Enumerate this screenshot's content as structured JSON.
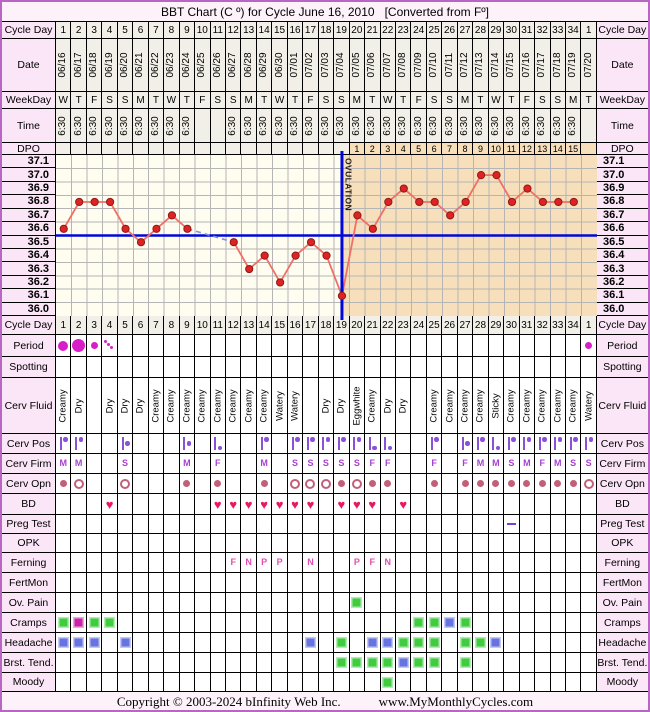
{
  "title": {
    "main": "BBT Chart (C º) for Cycle June 16, 2010",
    "note": "[Converted from Fº]"
  },
  "footer": {
    "copyright": "Copyright © 2003-2024 bInfinity Web Inc.",
    "website": "www.MyMonthlyCycles.com"
  },
  "colors": {
    "accent_pink_label": "#fbe6f7",
    "header_cell": "#f1efe7",
    "pre_ovulation_bg": "#fffcf0",
    "post_ovulation_bg": "#f6dfba",
    "temp_line": "#ef7066",
    "temp_point": "#e02222",
    "coverline_blue": "#0008d8",
    "period_magenta": "#d81ec8",
    "heart_pink": "#e8195e",
    "squares": {
      "green": "#3fcc3f",
      "blue": "#6673e0",
      "magenta": "#cc22aa"
    }
  },
  "grid": {
    "labels": {
      "cycle_day": "Cycle Day",
      "date": "Date",
      "weekday": "WeekDay",
      "time": "Time",
      "dpo": "DPO"
    },
    "cycle_days": [
      "1",
      "2",
      "3",
      "4",
      "5",
      "6",
      "7",
      "8",
      "9",
      "10",
      "11",
      "12",
      "13",
      "14",
      "15",
      "16",
      "17",
      "18",
      "19",
      "20",
      "21",
      "22",
      "23",
      "24",
      "25",
      "26",
      "27",
      "28",
      "29",
      "30",
      "31",
      "32",
      "33",
      "34",
      "1"
    ],
    "dates": [
      "06/16",
      "06/17",
      "06/18",
      "06/19",
      "06/20",
      "06/21",
      "06/22",
      "06/23",
      "06/24",
      "06/25",
      "06/26",
      "06/27",
      "06/28",
      "06/29",
      "06/30",
      "07/01",
      "07/02",
      "07/03",
      "07/04",
      "07/05",
      "07/06",
      "07/07",
      "07/08",
      "07/09",
      "07/10",
      "07/11",
      "07/12",
      "07/13",
      "07/14",
      "07/15",
      "07/16",
      "07/17",
      "07/18",
      "07/19",
      "07/20"
    ],
    "weekdays": [
      "W",
      "T",
      "F",
      "S",
      "S",
      "M",
      "T",
      "W",
      "T",
      "F",
      "S",
      "S",
      "M",
      "T",
      "W",
      "T",
      "F",
      "S",
      "S",
      "M",
      "T",
      "W",
      "T",
      "F",
      "S",
      "S",
      "M",
      "T",
      "W",
      "T",
      "F",
      "S",
      "S",
      "M",
      "T"
    ],
    "times": [
      "6:30",
      "6:30",
      "6:30",
      "6:30",
      "6:30",
      "6:30",
      "6:30",
      "6:30",
      "6:30",
      "",
      "",
      "6:30",
      "6:30",
      "6:30",
      "6:30",
      "6:30",
      "6:30",
      "6:30",
      "6:30",
      "6:30",
      "6:30",
      "6:30",
      "6:30",
      "6:30",
      "6:30",
      "6:30",
      "6:30",
      "6:30",
      "6:30",
      "6:30",
      "6:30",
      "6:30",
      "6:30",
      "6:30",
      ""
    ],
    "dpo": [
      "",
      "",
      "",
      "",
      "",
      "",
      "",
      "",
      "",
      "",
      "",
      "",
      "",
      "",
      "",
      "",
      "",
      "",
      "",
      "1",
      "2",
      "3",
      "4",
      "5",
      "6",
      "7",
      "8",
      "9",
      "10",
      "11",
      "12",
      "13",
      "14",
      "15",
      ""
    ]
  },
  "chart_data": {
    "type": "line",
    "series_name": "BBT (°C)",
    "x_cycle_days": [
      1,
      2,
      3,
      4,
      5,
      6,
      7,
      8,
      9,
      10,
      11,
      12,
      13,
      14,
      15,
      16,
      17,
      18,
      19,
      20,
      21,
      22,
      23,
      24,
      25,
      26,
      27,
      28,
      29,
      30,
      31,
      32,
      33,
      34,
      1
    ],
    "temps_c": [
      36.6,
      36.8,
      36.8,
      36.8,
      36.6,
      36.5,
      36.6,
      36.7,
      36.6,
      null,
      null,
      36.5,
      36.3,
      36.4,
      36.2,
      36.4,
      36.5,
      36.4,
      36.1,
      36.7,
      36.6,
      36.8,
      36.9,
      36.8,
      36.8,
      36.7,
      36.8,
      37.0,
      37.0,
      36.8,
      36.9,
      36.8,
      36.8,
      36.8,
      null
    ],
    "ytick_labels": [
      "37.1",
      "37.0",
      "36.9",
      "36.8",
      "36.7",
      "36.6",
      "36.5",
      "36.4",
      "36.3",
      "36.2",
      "36.1",
      "36.0"
    ],
    "ylim": [
      36.0,
      37.1
    ],
    "coverline_c": 36.55,
    "ovulation_cycle_day": 19,
    "ovulation_label": "OVULATION",
    "missing_days": [
      10,
      11,
      35
    ]
  },
  "rows": [
    {
      "id": "cycle-day-bottom",
      "label": "Cycle Day",
      "type": "cycle-days",
      "entries": {}
    },
    {
      "id": "period",
      "label": "Period",
      "type": "period",
      "entries": {
        "1": "medium",
        "2": "heavy",
        "3": "light",
        "4": "spotting",
        "35": "light"
      }
    },
    {
      "id": "spotting",
      "label": "Spotting",
      "type": "period",
      "entries": {}
    },
    {
      "id": "cerv-fluid",
      "label": "Cerv Fluid",
      "type": "vtext",
      "entries": {
        "1": "Creamy",
        "2": "Dry",
        "4": "Dry",
        "5": "Dry",
        "6": "Dry",
        "7": "Creamy",
        "8": "Creamy",
        "9": "Creamy",
        "10": "Creamy",
        "11": "Creamy",
        "12": "Creamy",
        "13": "Creamy",
        "14": "Creamy",
        "15": "Watery",
        "16": "Watery",
        "18": "Dry",
        "19": "Dry",
        "20": "Eggwhite",
        "21": "Creamy",
        "22": "Dry",
        "23": "Dry",
        "25": "Creamy",
        "26": "Creamy",
        "27": "Creamy",
        "28": "Creamy",
        "29": "Sticky",
        "30": "Creamy",
        "31": "Creamy",
        "32": "Creamy",
        "33": "Creamy",
        "34": "Creamy",
        "35": "Watery"
      }
    },
    {
      "id": "cerv-pos",
      "label": "Cerv Pos",
      "type": "pos",
      "entries": {
        "1": "high",
        "2": "high",
        "5": "mid",
        "9": "mid",
        "11": "low",
        "14": "high",
        "16": "high",
        "17": "high",
        "18": "high",
        "19": "high",
        "20": "high",
        "21": "low",
        "22": "low",
        "25": "high",
        "27": "mid",
        "28": "high",
        "29": "low",
        "30": "high",
        "31": "high",
        "32": "high",
        "33": "high",
        "34": "high",
        "35": "high"
      }
    },
    {
      "id": "cerv-firm",
      "label": "Cerv Firm",
      "type": "letter-purple",
      "entries": {
        "1": "M",
        "2": "M",
        "5": "S",
        "9": "M",
        "11": "F",
        "14": "M",
        "16": "S",
        "17": "S",
        "18": "S",
        "19": "S",
        "20": "S",
        "21": "F",
        "22": "F",
        "25": "F",
        "27": "F",
        "28": "M",
        "29": "M",
        "30": "S",
        "31": "M",
        "32": "F",
        "33": "M",
        "34": "S",
        "35": "S"
      }
    },
    {
      "id": "cerv-opn",
      "label": "Cerv Opn",
      "type": "opn",
      "entries": {
        "1": "dot",
        "2": "ring",
        "5": "ring",
        "9": "dot",
        "11": "dot",
        "14": "dot",
        "16": "ring",
        "17": "ring",
        "18": "ring",
        "19": "dot",
        "20": "ring",
        "21": "dot",
        "22": "dot",
        "25": "dot",
        "27": "dot",
        "28": "dot",
        "29": "dot",
        "30": "dot",
        "31": "dot",
        "32": "dot",
        "33": "dot",
        "34": "dot",
        "35": "ring"
      }
    },
    {
      "id": "bd",
      "label": "BD",
      "type": "heart",
      "entries": {
        "4": "heart",
        "11": "heart",
        "12": "heart",
        "13": "heart",
        "14": "heart",
        "15": "heart",
        "16": "heart",
        "17": "heart",
        "19": "heart",
        "20": "heart",
        "21": "heart",
        "23": "heart"
      }
    },
    {
      "id": "preg-test",
      "label": "Preg Test",
      "type": "dash",
      "entries": {
        "30": "negative"
      }
    },
    {
      "id": "opk",
      "label": "OPK",
      "type": "none",
      "entries": {}
    },
    {
      "id": "ferning",
      "label": "Ferning",
      "type": "letter-pink",
      "entries": {
        "12": "F",
        "13": "N",
        "14": "P",
        "15": "P",
        "17": "N",
        "20": "P",
        "21": "F",
        "22": "N"
      }
    },
    {
      "id": "fertmon",
      "label": "FertMon",
      "type": "none",
      "entries": {}
    },
    {
      "id": "ov-pain",
      "label": "Ov. Pain",
      "type": "square",
      "entries": {
        "20": "green"
      }
    },
    {
      "id": "cramps",
      "label": "Cramps",
      "type": "square",
      "entries": {
        "1": "green",
        "2": "magenta",
        "3": "green",
        "4": "green",
        "24": "green",
        "25": "green",
        "26": "blue",
        "27": "green"
      }
    },
    {
      "id": "headache",
      "label": "Headache",
      "type": "square",
      "entries": {
        "1": "blue",
        "2": "blue",
        "3": "blue",
        "5": "blue",
        "17": "blue",
        "19": "green",
        "21": "blue",
        "22": "blue",
        "23": "green",
        "24": "green",
        "25": "green",
        "27": "green",
        "28": "green",
        "29": "blue"
      }
    },
    {
      "id": "brst-tend",
      "label": "Brst. Tend.",
      "type": "square",
      "entries": {
        "19": "green",
        "20": "green",
        "21": "green",
        "22": "green",
        "23": "blue",
        "24": "green",
        "25": "green",
        "27": "green"
      }
    },
    {
      "id": "moody",
      "label": "Moody",
      "type": "square",
      "entries": {
        "22": "green"
      }
    }
  ]
}
